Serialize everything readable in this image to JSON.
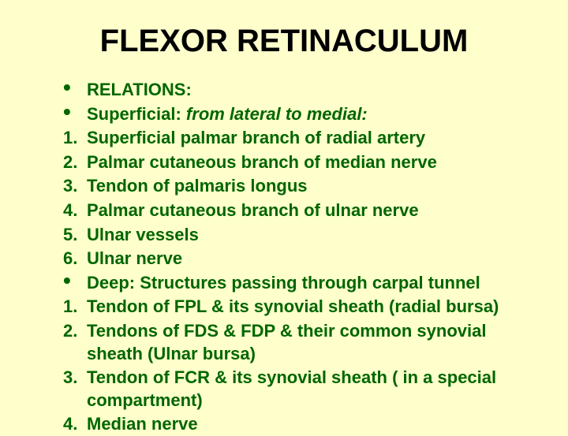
{
  "colors": {
    "background": "#ffffcc",
    "title": "#000000",
    "text": "#006600"
  },
  "typography": {
    "title_fontsize": 40,
    "body_fontsize": 22,
    "font_family": "Arial",
    "font_weight": "bold"
  },
  "title": "FLEXOR RETINACULUM",
  "items": [
    {
      "marker": "•",
      "text": "RELATIONS:"
    },
    {
      "marker": "•",
      "prefix": "Superficial:",
      "suffix": " from lateral to medial: "
    },
    {
      "marker": "1.",
      "text": "Superficial palmar branch of radial artery"
    },
    {
      "marker": "2.",
      "text": "Palmar cutaneous branch of median nerve"
    },
    {
      "marker": "3.",
      "text": "Tendon of palmaris longus"
    },
    {
      "marker": "4.",
      "text": "Palmar cutaneous branch of ulnar nerve"
    },
    {
      "marker": "5.",
      "text": "Ulnar vessels"
    },
    {
      "marker": "6.",
      "text": "Ulnar nerve"
    },
    {
      "marker": "•",
      "prefix": "Deep:",
      "suffix": " Structures passing through carpal tunnel"
    },
    {
      "marker": "1.",
      "text": "Tendon of FPL & its synovial sheath (radial bursa)"
    },
    {
      "marker": "2.",
      "text": "Tendons of FDS & FDP & their common synovial sheath (Ulnar bursa)"
    },
    {
      "marker": "3.",
      "text": "Tendon of FCR & its synovial sheath ( in a special compartment)"
    },
    {
      "marker": "4.",
      "text": "Median nerve"
    }
  ]
}
